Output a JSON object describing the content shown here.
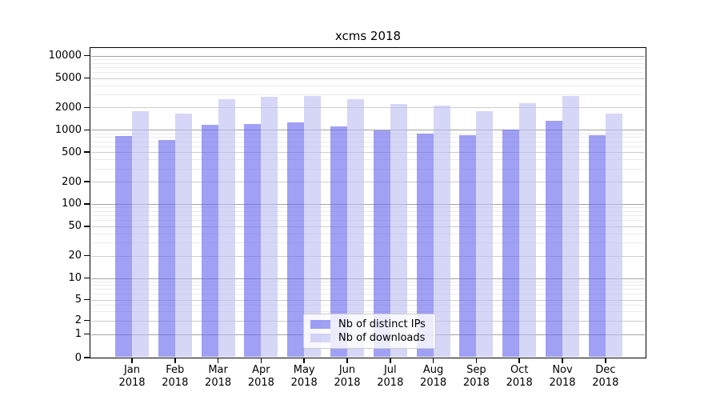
{
  "title": "xcms 2018",
  "chart_data": {
    "type": "bar",
    "title": "xcms 2018",
    "xlabel": "",
    "ylabel": "",
    "yscale": "log-with-zero",
    "grid": true,
    "legend_position": "inside-bottom-center",
    "categories": [
      "Jan\n2018",
      "Feb\n2018",
      "Mar\n2018",
      "Apr\n2018",
      "May\n2018",
      "Jun\n2018",
      "Jul\n2018",
      "Aug\n2018",
      "Sep\n2018",
      "Oct\n2018",
      "Nov\n2018",
      "Dec\n2018"
    ],
    "yticks": [
      0,
      1,
      2,
      5,
      10,
      20,
      50,
      100,
      200,
      500,
      1000,
      2000,
      5000,
      10000
    ],
    "ylim": [
      0,
      10000
    ],
    "series": [
      {
        "name": "Nb of distinct IPs",
        "color": "rgba(102,102,238,0.62)",
        "values": [
          830,
          730,
          1180,
          1185,
          1275,
          1100,
          995,
          890,
          845,
          1020,
          1310,
          850
        ]
      },
      {
        "name": "Nb of downloads",
        "color": "rgba(189,189,242,0.62)",
        "values": [
          1780,
          1670,
          2610,
          2810,
          2880,
          2560,
          2210,
          2100,
          1775,
          2300,
          2880,
          1655
        ]
      }
    ]
  },
  "legend": {
    "entry_ips": "Nb of distinct IPs",
    "entry_downloads": "Nb of downloads"
  }
}
